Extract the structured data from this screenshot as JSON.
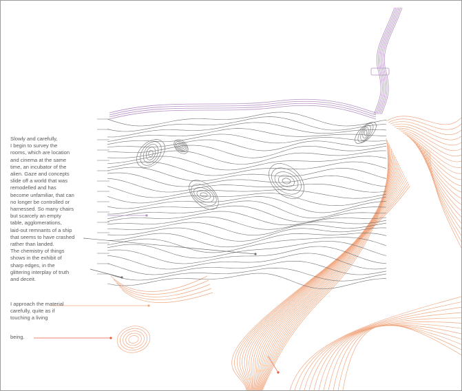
{
  "text": {
    "para1": "Slowly and carefully,\nI begin to survey the\nrooms, which are location\nand cinema at the same\ntime, an incubator of the\nalien. Gaze and concepts\nslide off a world that was\nremodelled and has\nbecome unfamiliar, that can\nno longer be controlled or\nharnessed. So many chairs\nbut scarcely an empty\ntable, agglomerations,\nlaid-out remnants of a ship\nthat seems to have crashed\nrather than landed.\nThe chemistry of things\nshows in the exhibit of\nsharp edges, in the\nglittering interplay of truth\nand deceit.",
    "para2": "I approach the material\ncarefully, quite as if\ntouching a living",
    "para3": "being."
  },
  "colors": {
    "background": "#ffffff",
    "text": "#5a5a5a",
    "gray_lines": "#6e6e6e",
    "purple_lines": "#b48fc4",
    "orange_lines": "#f0a882",
    "red_markers": "#e8563a"
  },
  "illustration": {
    "kind": "topographic contour-line drawing",
    "layers": [
      "gray-contours",
      "purple-contours",
      "orange-contours"
    ]
  }
}
